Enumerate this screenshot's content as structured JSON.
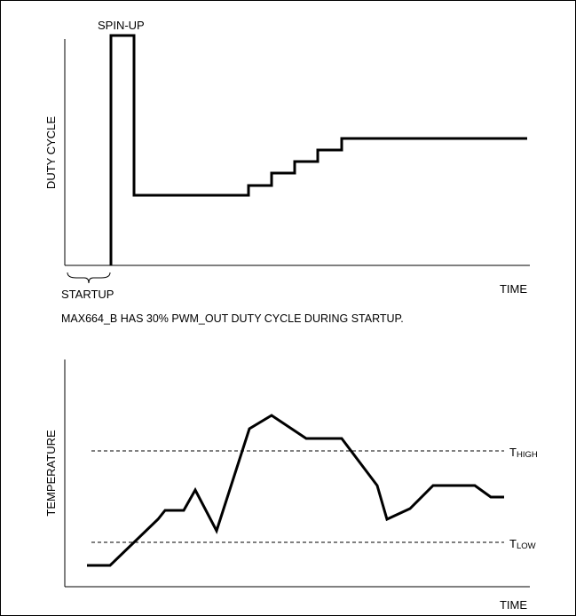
{
  "top_chart": {
    "spin_up_label": "SPIN-UP",
    "y_label": "DUTY CYCLE",
    "x_label": "TIME",
    "startup_label": "STARTUP",
    "caption": "MAX664_B HAS 30% PWM_OUT DUTY CYCLE DURING STARTUP."
  },
  "bottom_chart": {
    "y_label": "TEMPERATURE",
    "x_label": "TIME",
    "t_high_main": "T",
    "t_high_sub": "HIGH",
    "t_low_main": "T",
    "t_low_sub": "LOW"
  },
  "chart_data": [
    {
      "type": "line",
      "title": "",
      "xlabel": "TIME",
      "ylabel": "DUTY CYCLE",
      "annotations": [
        "SPIN-UP",
        "STARTUP"
      ],
      "series": [
        {
          "x": [
            0,
            0.08,
            0.08,
            0.13,
            0.13,
            0.36,
            0.36,
            0.41,
            0.41,
            0.46,
            0.46,
            0.51,
            0.51,
            0.56,
            0.56,
            1.0
          ],
          "y": [
            0,
            0,
            1.0,
            1.0,
            0.3,
            0.3,
            0.35,
            0.35,
            0.4,
            0.4,
            0.45,
            0.45,
            0.5,
            0.5,
            0.55,
            0.55
          ]
        }
      ],
      "grid": false
    },
    {
      "type": "line",
      "title": "",
      "xlabel": "TIME",
      "ylabel": "TEMPERATURE",
      "annotations": [
        "THIGH",
        "TLOW"
      ],
      "series": [
        {
          "x": [
            0.05,
            0.1,
            0.2,
            0.23,
            0.27,
            0.3,
            0.34,
            0.41,
            0.47,
            0.54,
            0.62,
            0.69,
            0.74,
            0.8,
            0.9,
            0.94,
            0.97
          ],
          "y": [
            0.05,
            0.05,
            0.3,
            0.38,
            0.38,
            0.48,
            0.25,
            0.85,
            0.92,
            0.83,
            0.83,
            0.55,
            0.28,
            0.33,
            0.48,
            0.48,
            0.42
          ]
        },
        {
          "x": [
            0.1,
            0.93
          ],
          "y": [
            0.73,
            0.73
          ]
        },
        {
          "x": [
            0.1,
            0.93
          ],
          "y": [
            0.17,
            0.17
          ]
        }
      ],
      "grid": false
    }
  ]
}
